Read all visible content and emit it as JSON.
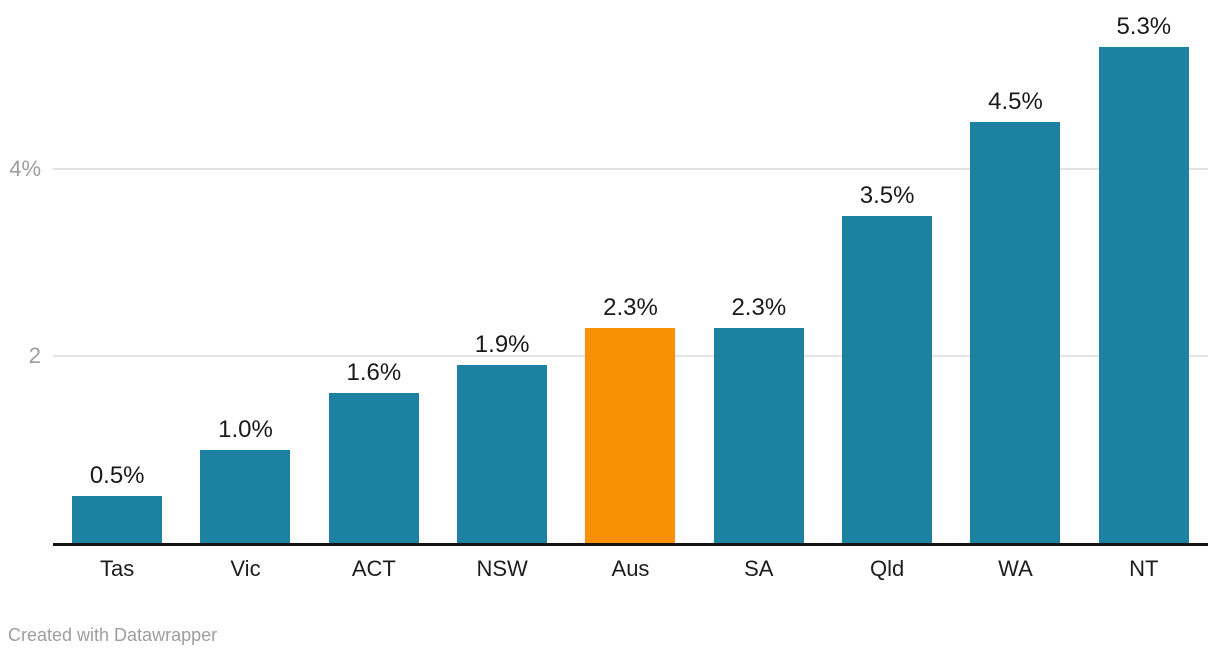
{
  "chart_data": {
    "type": "bar",
    "categories": [
      "Tas",
      "Vic",
      "ACT",
      "NSW",
      "Aus",
      "SA",
      "Qld",
      "WA",
      "NT"
    ],
    "values": [
      0.5,
      1.0,
      1.6,
      1.9,
      2.3,
      2.3,
      3.5,
      4.5,
      5.3
    ],
    "value_labels": [
      "0.5%",
      "1.0%",
      "1.6%",
      "1.9%",
      "2.3%",
      "2.3%",
      "3.5%",
      "4.5%",
      "5.3%"
    ],
    "highlight_category": "Aus",
    "title": "",
    "xlabel": "",
    "ylabel": "",
    "ylim": [
      0,
      5.81
    ],
    "grid": true,
    "legend": "none",
    "y_ticks": [
      {
        "value": 2,
        "label": "2"
      },
      {
        "value": 4,
        "label": "4%"
      }
    ],
    "colors": {
      "bar": "#1d81a2",
      "highlight_bar": "#fa9005",
      "gridline": "#e4e4e4",
      "axis_line": "#131313",
      "value_label": "#1a1a1a",
      "category_label": "#1d1d1d",
      "tick_label": "#9e9e9e"
    }
  },
  "footer": {
    "attribution": "Created with Datawrapper"
  }
}
